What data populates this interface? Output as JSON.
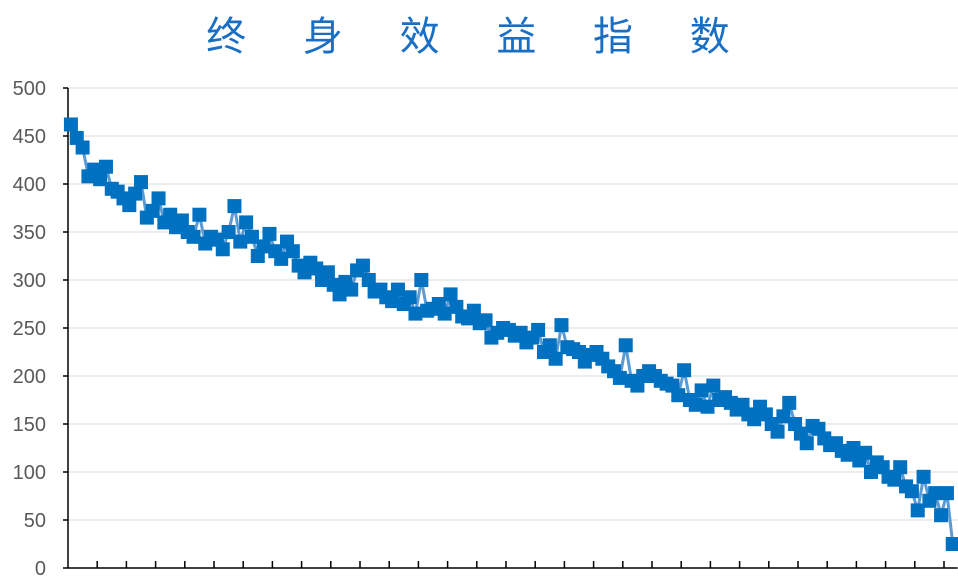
{
  "chart_data": {
    "type": "line",
    "title": "终 身 效 益 指 数",
    "xlabel": "",
    "ylabel": "",
    "ylim": [
      0,
      500
    ],
    "yticks": [
      0,
      50,
      100,
      150,
      200,
      250,
      300,
      350,
      400,
      450,
      500
    ],
    "grid": true,
    "markers": "square",
    "colors": {
      "marker": "#0070c0",
      "line": "#5b9bd5",
      "title": "#1a6fc4",
      "grid": "#d9d9d9"
    },
    "values": [
      462,
      448,
      438,
      408,
      415,
      405,
      418,
      395,
      392,
      385,
      378,
      390,
      402,
      365,
      372,
      385,
      360,
      368,
      355,
      362,
      350,
      345,
      368,
      338,
      345,
      342,
      332,
      350,
      377,
      340,
      360,
      345,
      325,
      335,
      348,
      330,
      322,
      340,
      330,
      315,
      308,
      318,
      312,
      300,
      308,
      295,
      285,
      298,
      290,
      310,
      315,
      300,
      288,
      290,
      282,
      278,
      290,
      275,
      282,
      265,
      300,
      268,
      270,
      275,
      265,
      285,
      272,
      262,
      260,
      268,
      255,
      258,
      240,
      245,
      250,
      248,
      242,
      245,
      235,
      240,
      248,
      225,
      232,
      218,
      253,
      230,
      228,
      225,
      215,
      222,
      225,
      218,
      210,
      205,
      198,
      232,
      195,
      190,
      200,
      205,
      200,
      195,
      192,
      190,
      180,
      206,
      175,
      170,
      185,
      168,
      190,
      175,
      178,
      172,
      165,
      170,
      160,
      155,
      168,
      160,
      150,
      142,
      158,
      172,
      150,
      140,
      130,
      148,
      145,
      135,
      128,
      130,
      122,
      118,
      125,
      112,
      120,
      100,
      110,
      105,
      95,
      92,
      105,
      85,
      80,
      60,
      95,
      70,
      78,
      55,
      78,
      25
    ]
  }
}
